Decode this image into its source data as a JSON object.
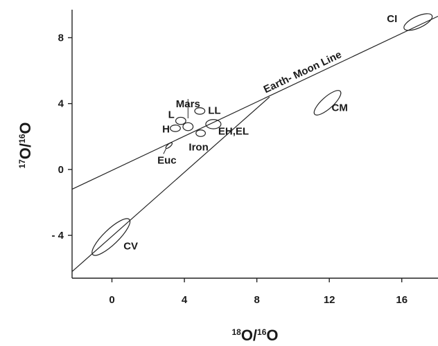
{
  "chart_data": {
    "type": "scatter",
    "title": "",
    "xlabel": {
      "pre": "18",
      "main1": "O/",
      "sup": "16",
      "main2": "O"
    },
    "ylabel": {
      "pre": "17",
      "main1": "O/",
      "sup": "16",
      "main2": "O"
    },
    "xlim": [
      -2.2,
      18
    ],
    "ylim": [
      -6.6,
      9.7
    ],
    "xticks": [
      0,
      4,
      8,
      12,
      16
    ],
    "xtick_labels": [
      "0",
      "4",
      "8",
      "12",
      "16"
    ],
    "yticks": [
      8,
      4,
      0,
      -4
    ],
    "ytick_labels": [
      "8",
      "4",
      "0",
      "- 4"
    ],
    "grid": false,
    "lines": [
      {
        "label": "Earth- Moon Line",
        "x": [
          -2.2,
          18.0
        ],
        "y": [
          -1.2,
          9.3
        ]
      },
      {
        "label": "",
        "x": [
          -2.2,
          8.7
        ],
        "y": [
          -6.2,
          4.4
        ]
      }
    ],
    "groups": [
      {
        "label": "CI",
        "center": [
          16.9,
          8.95
        ],
        "rx": 0.85,
        "ry": 0.35,
        "angle": 25
      },
      {
        "label": "CM",
        "center": [
          11.9,
          4.05
        ],
        "rx": 0.95,
        "ry": 0.35,
        "angle": 42
      },
      {
        "label": "CV",
        "center": [
          -0.05,
          -4.1
        ],
        "rx": 1.4,
        "ry": 0.45,
        "angle": 44
      },
      {
        "label": "LL",
        "center": [
          4.85,
          3.55
        ],
        "rx": 0.28,
        "ry": 0.2,
        "angle": 0
      },
      {
        "label": "L",
        "center": [
          3.8,
          2.95
        ],
        "rx": 0.28,
        "ry": 0.22,
        "angle": 0
      },
      {
        "label": "H",
        "center": [
          3.5,
          2.5
        ],
        "rx": 0.28,
        "ry": 0.2,
        "angle": 0
      },
      {
        "label": "Mars",
        "center": [
          4.2,
          2.6
        ],
        "rx": 0.28,
        "ry": 0.24,
        "angle": 0
      },
      {
        "label": "Iron",
        "center": [
          4.9,
          2.2
        ],
        "rx": 0.26,
        "ry": 0.2,
        "angle": 0
      },
      {
        "label": "EH,EL",
        "center": [
          5.6,
          2.75
        ],
        "rx": 0.42,
        "ry": 0.28,
        "angle": 0
      },
      {
        "label": "Euc",
        "center": [
          3.15,
          1.45
        ],
        "rx": 0.22,
        "ry": 0.09,
        "angle": 40
      }
    ]
  }
}
